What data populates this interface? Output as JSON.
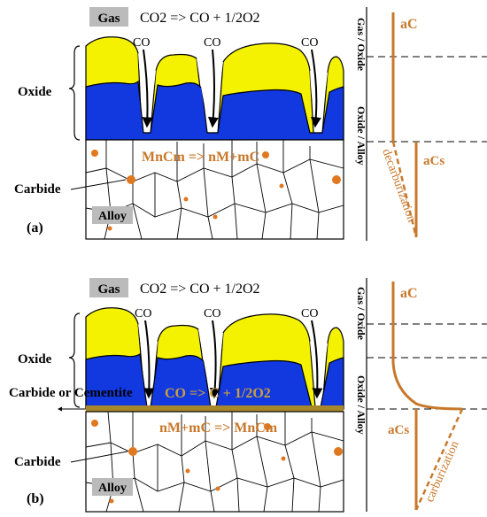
{
  "panel_a": {
    "gas_label": "Gas",
    "gas_reaction": "CO2 => CO + 1/2O2",
    "co_arrow_label": "CO",
    "oxide_label": "Oxide",
    "carbide_label": "Carbide",
    "panel_label": "(a)",
    "alloy_label": "Alloy",
    "carbide_reaction": "MnCm => nM+mC",
    "profile": {
      "a_c_label": "aC",
      "a_cs_label": "aCs",
      "interface_gas_oxide": "Gas / Oxide",
      "interface_oxide_alloy": "Oxide / Alloy",
      "process_label": "decarburization"
    }
  },
  "panel_b": {
    "gas_label": "Gas",
    "gas_reaction": "CO2 => CO + 1/2O2",
    "co_arrow_label": "CO",
    "oxide_label": "Oxide",
    "carbide_or_cementite_label": "Carbide or Cementite",
    "carbide_label": "Carbide",
    "panel_label": "(b)",
    "alloy_label": "Alloy",
    "interface_reaction": "CO => C + 1/2O2",
    "carbide_reaction": "nM+mC => MnCm",
    "profile": {
      "a_c_label": "aC",
      "a_cs_label": "aCs",
      "interface_gas_oxide": "Gas / Oxide",
      "interface_oxide_alloy": "Oxide / Alloy",
      "process_label": "carburization"
    }
  },
  "colors": {
    "oxide_outer": "#f4f200",
    "oxide_inner": "#1238e0",
    "accent": "#c8782a",
    "carbide_dot": "#e07820",
    "interface_band": "#a8862a",
    "label_box": "#bbbbbb"
  }
}
